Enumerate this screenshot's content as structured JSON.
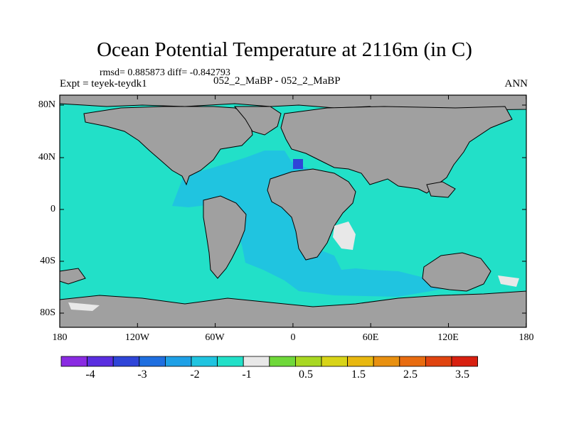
{
  "title": "Ocean Potential Temperature at 2116m (in C)",
  "stats": "rmsd= 0.885873 diff= -0.842793",
  "experiment": "Expt = teyek-teydk1",
  "case_label": "052_2_MaBP - 052_2_MaBP",
  "season": "ANN",
  "lat_labels": [
    "80N",
    "40N",
    "0",
    "40S",
    "80S"
  ],
  "lon_labels": [
    "180",
    "120W",
    "60W",
    "0",
    "60E",
    "120E",
    "180"
  ],
  "colorbar": {
    "colors": [
      "#8a2be2",
      "#5a2ee0",
      "#2f45d8",
      "#1f6fe0",
      "#1ea0e6",
      "#20c4e0",
      "#22e0c8",
      "#e8e8e8",
      "#6fd83a",
      "#a8d822",
      "#d8d418",
      "#e8b810",
      "#e89010",
      "#e86c10",
      "#e04410",
      "#d82010"
    ],
    "labels": [
      "-4",
      "-3",
      "-2",
      "-1",
      "0.5",
      "1.5",
      "2.5",
      "3.5"
    ]
  },
  "legend_colors": {
    "land": "#a0a0a0",
    "ocean_main": "#22e0c8",
    "ocean_atlantic": "#20c4e0",
    "strong_negative": "#2f45d8",
    "near_zero": "#e8e8e8"
  }
}
